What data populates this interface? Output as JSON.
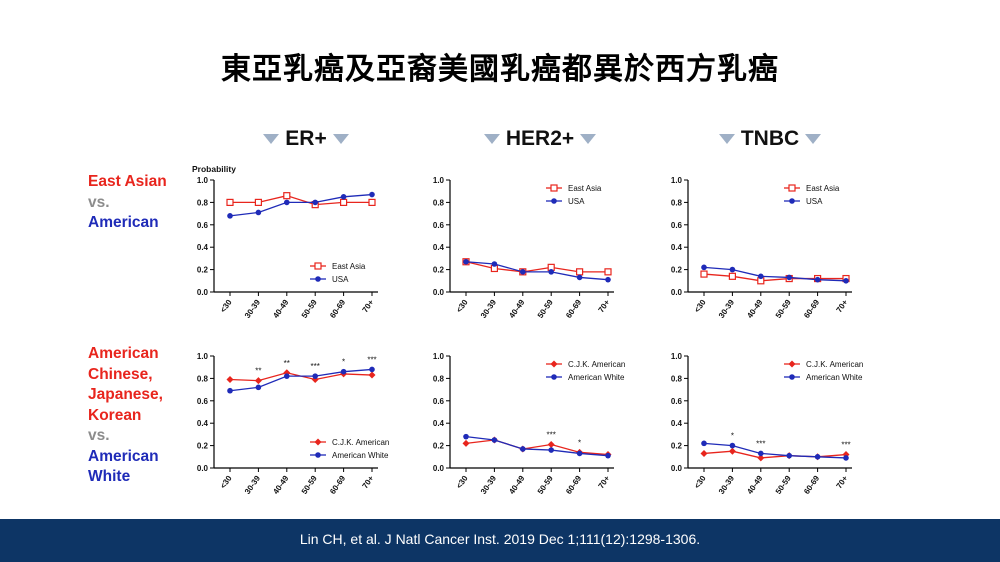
{
  "slide": {
    "title": "東亞乳癌及亞裔美國乳癌都異於西方乳癌",
    "col_headers": [
      "ER+",
      "HER2+",
      "TNBC"
    ],
    "row1_label": {
      "l1": "East Asian",
      "l2": "vs.",
      "l3": "American"
    },
    "row2_label": {
      "l1": "American",
      "l2": "Chinese,",
      "l3": "Japanese,",
      "l4": "Korean",
      "l5": "vs.",
      "l6": "American",
      "l7": "White"
    },
    "citation": "Lin CH, et al. J Natl Cancer Inst. 2019 Dec 1;111(12):1298-1306.",
    "colors": {
      "red": "#e8251d",
      "blue": "#1f2bb8",
      "footer": "#0d3565"
    }
  },
  "chart_data": [
    {
      "type": "line",
      "panel": "ER+ / East Asian vs American",
      "ylabel": "Probability",
      "categories": [
        "<30",
        "30-39",
        "40-49",
        "50-59",
        "60-69",
        "70+"
      ],
      "ylim": [
        0,
        1.0
      ],
      "yticks": [
        "0.0",
        "0.2",
        "0.4",
        "0.6",
        "0.8",
        "1.0"
      ],
      "legend_pos": "bottom-right",
      "series": [
        {
          "name": "East Asia",
          "marker": "square",
          "color": "#e8251d",
          "values": [
            0.8,
            0.8,
            0.86,
            0.78,
            0.8,
            0.8
          ]
        },
        {
          "name": "USA",
          "marker": "circle",
          "color": "#1f2bb8",
          "values": [
            0.68,
            0.71,
            0.8,
            0.8,
            0.85,
            0.87
          ]
        }
      ],
      "annotations": []
    },
    {
      "type": "line",
      "panel": "HER2+ / East Asian vs American",
      "categories": [
        "<30",
        "30-39",
        "40-49",
        "50-59",
        "60-69",
        "70+"
      ],
      "ylim": [
        0,
        1.0
      ],
      "yticks": [
        "0.0",
        "0.2",
        "0.4",
        "0.6",
        "0.8",
        "1.0"
      ],
      "legend_pos": "top-right",
      "series": [
        {
          "name": "East Asia",
          "marker": "square",
          "color": "#e8251d",
          "values": [
            0.27,
            0.21,
            0.18,
            0.22,
            0.18,
            0.18
          ]
        },
        {
          "name": "USA",
          "marker": "circle",
          "color": "#1f2bb8",
          "values": [
            0.27,
            0.25,
            0.18,
            0.18,
            0.13,
            0.11
          ]
        }
      ],
      "annotations": []
    },
    {
      "type": "line",
      "panel": "TNBC / East Asian vs American",
      "categories": [
        "<30",
        "30-39",
        "40-49",
        "50-59",
        "60-69",
        "70+"
      ],
      "ylim": [
        0,
        1.0
      ],
      "yticks": [
        "0.0",
        "0.2",
        "0.4",
        "0.6",
        "0.8",
        "1.0"
      ],
      "legend_pos": "top-right",
      "series": [
        {
          "name": "East Asia",
          "marker": "square",
          "color": "#e8251d",
          "values": [
            0.16,
            0.14,
            0.1,
            0.12,
            0.12,
            0.12
          ]
        },
        {
          "name": "USA",
          "marker": "circle",
          "color": "#1f2bb8",
          "values": [
            0.22,
            0.2,
            0.14,
            0.13,
            0.11,
            0.1
          ]
        }
      ],
      "annotations": []
    },
    {
      "type": "line",
      "panel": "ER+ / CJK American vs American White",
      "categories": [
        "<30",
        "30-39",
        "40-49",
        "50-59",
        "60-69",
        "70+"
      ],
      "ylim": [
        0,
        1.0
      ],
      "yticks": [
        "0.0",
        "0.2",
        "0.4",
        "0.6",
        "0.8",
        "1.0"
      ],
      "legend_pos": "bottom-right",
      "series": [
        {
          "name": "C.J.K. American",
          "marker": "diamond",
          "color": "#e8251d",
          "values": [
            0.79,
            0.78,
            0.85,
            0.79,
            0.84,
            0.83
          ]
        },
        {
          "name": "American White",
          "marker": "circle",
          "color": "#1f2bb8",
          "values": [
            0.69,
            0.72,
            0.82,
            0.82,
            0.86,
            0.88
          ]
        }
      ],
      "annotations": [
        "",
        "**",
        "**",
        "***",
        "*",
        "***"
      ]
    },
    {
      "type": "line",
      "panel": "HER2+ / CJK American vs American White",
      "categories": [
        "<30",
        "30-39",
        "40-49",
        "50-59",
        "60-69",
        "70+"
      ],
      "ylim": [
        0,
        1.0
      ],
      "yticks": [
        "0.0",
        "0.2",
        "0.4",
        "0.6",
        "0.8",
        "1.0"
      ],
      "legend_pos": "top-right",
      "series": [
        {
          "name": "C.J.K. American",
          "marker": "diamond",
          "color": "#e8251d",
          "values": [
            0.22,
            0.25,
            0.17,
            0.21,
            0.14,
            0.12
          ]
        },
        {
          "name": "American White",
          "marker": "circle",
          "color": "#1f2bb8",
          "values": [
            0.28,
            0.25,
            0.17,
            0.16,
            0.13,
            0.11
          ]
        }
      ],
      "annotations": [
        "",
        "",
        "",
        "***",
        "*",
        ""
      ]
    },
    {
      "type": "line",
      "panel": "TNBC / CJK American vs American White",
      "categories": [
        "<30",
        "30-39",
        "40-49",
        "50-59",
        "60-69",
        "70+"
      ],
      "ylim": [
        0,
        1.0
      ],
      "yticks": [
        "0.0",
        "0.2",
        "0.4",
        "0.6",
        "0.8",
        "1.0"
      ],
      "legend_pos": "top-right",
      "series": [
        {
          "name": "C.J.K. American",
          "marker": "diamond",
          "color": "#e8251d",
          "values": [
            0.13,
            0.15,
            0.09,
            0.11,
            0.1,
            0.12
          ]
        },
        {
          "name": "American White",
          "marker": "circle",
          "color": "#1f2bb8",
          "values": [
            0.22,
            0.2,
            0.13,
            0.11,
            0.1,
            0.09
          ]
        }
      ],
      "annotations": [
        "",
        "*",
        "***",
        "",
        "",
        "***"
      ]
    }
  ]
}
